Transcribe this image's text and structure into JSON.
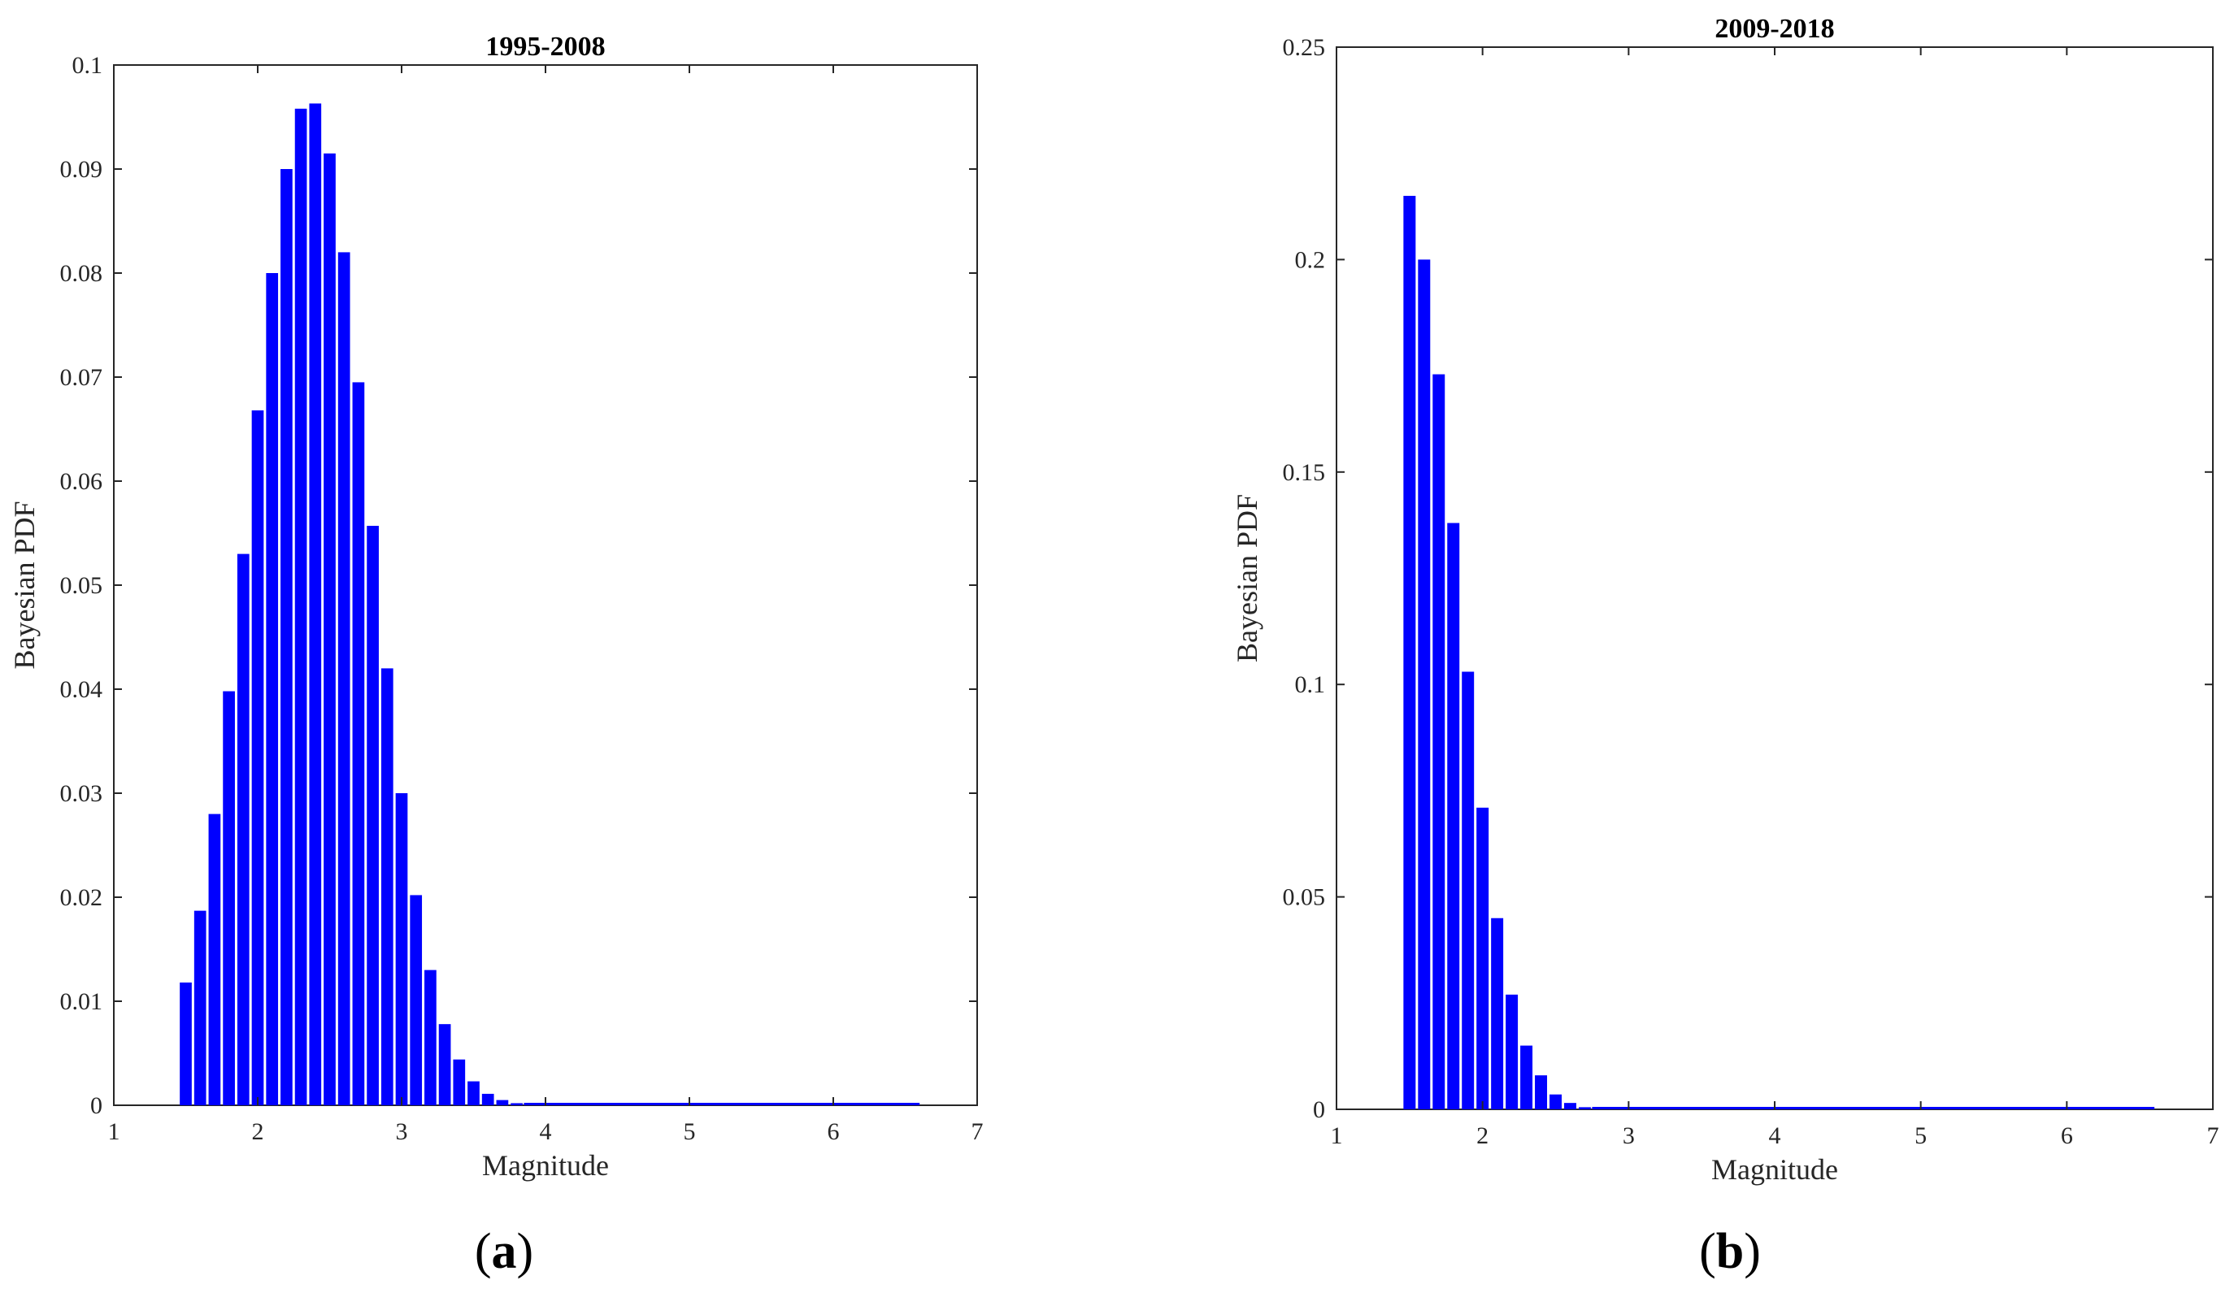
{
  "figure": {
    "panels": [
      {
        "label": "a"
      },
      {
        "label": "b"
      }
    ]
  },
  "chart_data": [
    {
      "type": "bar",
      "title": "1995-2008",
      "xlabel": "Magnitude",
      "ylabel": "Bayesian PDF",
      "xlim": [
        1,
        7
      ],
      "ylim": [
        0,
        0.1
      ],
      "xticks": [
        1,
        2,
        3,
        4,
        5,
        6,
        7
      ],
      "xtick_labels": [
        "1",
        "2",
        "3",
        "4",
        "5",
        "6",
        "7"
      ],
      "yticks": [
        0,
        0.01,
        0.02,
        0.03,
        0.04,
        0.05,
        0.06,
        0.07,
        0.08,
        0.09,
        0.1
      ],
      "ytick_labels": [
        "0",
        "0.01",
        "0.02",
        "0.03",
        "0.04",
        "0.05",
        "0.06",
        "0.07",
        "0.08",
        "0.09",
        "0.1"
      ],
      "bar_color": "#0000ff",
      "grid": false,
      "bin_width": 0.1,
      "x_end": 6.6,
      "x": [
        1.5,
        1.6,
        1.7,
        1.8,
        1.9,
        2.0,
        2.1,
        2.2,
        2.3,
        2.4,
        2.5,
        2.6,
        2.7,
        2.8,
        2.9,
        3.0,
        3.1,
        3.2,
        3.3,
        3.4,
        3.5,
        3.6,
        3.7,
        3.8
      ],
      "values": [
        0.0118,
        0.0187,
        0.028,
        0.0398,
        0.053,
        0.0668,
        0.08,
        0.09,
        0.0958,
        0.0963,
        0.0915,
        0.082,
        0.0695,
        0.0557,
        0.042,
        0.03,
        0.0202,
        0.013,
        0.0078,
        0.0044,
        0.0023,
        0.0011,
        0.0005,
        0.0002
      ]
    },
    {
      "type": "bar",
      "title": "2009-2018",
      "xlabel": "Magnitude",
      "ylabel": "Bayesian PDF",
      "xlim": [
        1,
        7
      ],
      "ylim": [
        0,
        0.25
      ],
      "xticks": [
        1,
        2,
        3,
        4,
        5,
        6,
        7
      ],
      "xtick_labels": [
        "1",
        "2",
        "3",
        "4",
        "5",
        "6",
        "7"
      ],
      "yticks": [
        0,
        0.05,
        0.1,
        0.15,
        0.2,
        0.25
      ],
      "ytick_labels": [
        "0",
        "0.05",
        "0.1",
        "0.15",
        "0.2",
        "0.25"
      ],
      "bar_color": "#0000ff",
      "grid": false,
      "bin_width": 0.1,
      "x_end": 6.6,
      "x": [
        1.5,
        1.6,
        1.7,
        1.8,
        1.9,
        2.0,
        2.1,
        2.2,
        2.3,
        2.4,
        2.5,
        2.6,
        2.7
      ],
      "values": [
        0.215,
        0.2,
        0.173,
        0.138,
        0.103,
        0.071,
        0.045,
        0.027,
        0.015,
        0.008,
        0.0035,
        0.0015,
        0.0005
      ]
    }
  ]
}
